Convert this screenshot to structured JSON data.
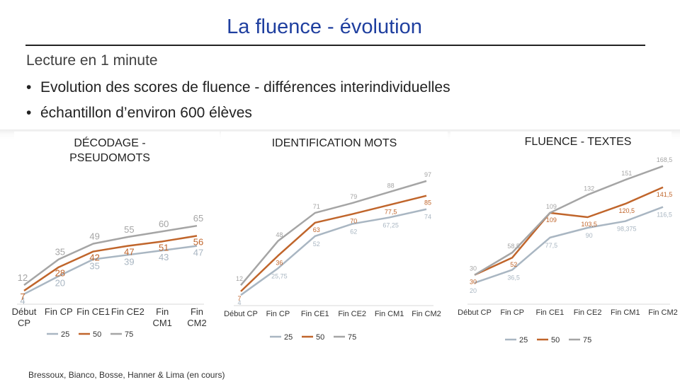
{
  "slide": {
    "title": "La fluence - évolution",
    "intro": "Lecture en 1 minute",
    "bullets": [
      "Evolution des scores de fluence  - différences interindividuelles",
      "échantillon d’environ 600 élèves"
    ],
    "credit": "Bressoux, Bianco, Bosse, Hanner & Lima (en cours)"
  },
  "colors": {
    "p25": "#a9b6c2",
    "p50": "#c0652b",
    "p75": "#a5a5a5",
    "axis": "#d9d9d9",
    "title": "#1f3f9f"
  },
  "chart_data": [
    {
      "type": "line",
      "title": "DÉCODAGE - PSEUDOMOTS",
      "categories": [
        "Début CP",
        "Fin CP",
        "Fin CE1",
        "Fin CE2",
        "Fin CM1",
        "Fin CM2"
      ],
      "series": [
        {
          "name": "25",
          "values": [
            4,
            20,
            35,
            39,
            43,
            47
          ]
        },
        {
          "name": "50",
          "values": [
            7,
            28,
            42,
            47,
            51,
            56
          ]
        },
        {
          "name": "75",
          "values": [
            12,
            35,
            49,
            55,
            60,
            65
          ]
        }
      ],
      "ylim": [
        0,
        110
      ]
    },
    {
      "type": "line",
      "title": "IDENTIFICATION MOTS",
      "categories": [
        "Début CP",
        "Fin CP",
        "Fin CE1",
        "Fin CE2",
        "Fin CM1",
        "Fin CM2"
      ],
      "series": [
        {
          "name": "25",
          "values": [
            4,
            25.75,
            52,
            62,
            67.25,
            74
          ]
        },
        {
          "name": "50",
          "values": [
            7,
            36,
            63,
            70,
            77.5,
            85
          ]
        },
        {
          "name": "75",
          "values": [
            12,
            48,
            71,
            79,
            88,
            97
          ]
        }
      ],
      "ylim": [
        0,
        120
      ]
    },
    {
      "type": "line",
      "title": "FLUENCE - TEXTES",
      "categories": [
        "Début CP",
        "Fin CP",
        "Fin CE1",
        "Fin CE2",
        "Fin CM1",
        "Fin CM2"
      ],
      "series": [
        {
          "name": "25",
          "values": [
            20,
            36.5,
            77.5,
            90,
            98.375,
            116.5
          ]
        },
        {
          "name": "50",
          "values": [
            30,
            52,
            109,
            103.5,
            120.5,
            141.5
          ]
        },
        {
          "name": "75",
          "values": [
            30,
            58.5,
            109,
            132,
            151,
            168.5
          ]
        }
      ],
      "ylim": [
        0,
        180
      ]
    }
  ]
}
